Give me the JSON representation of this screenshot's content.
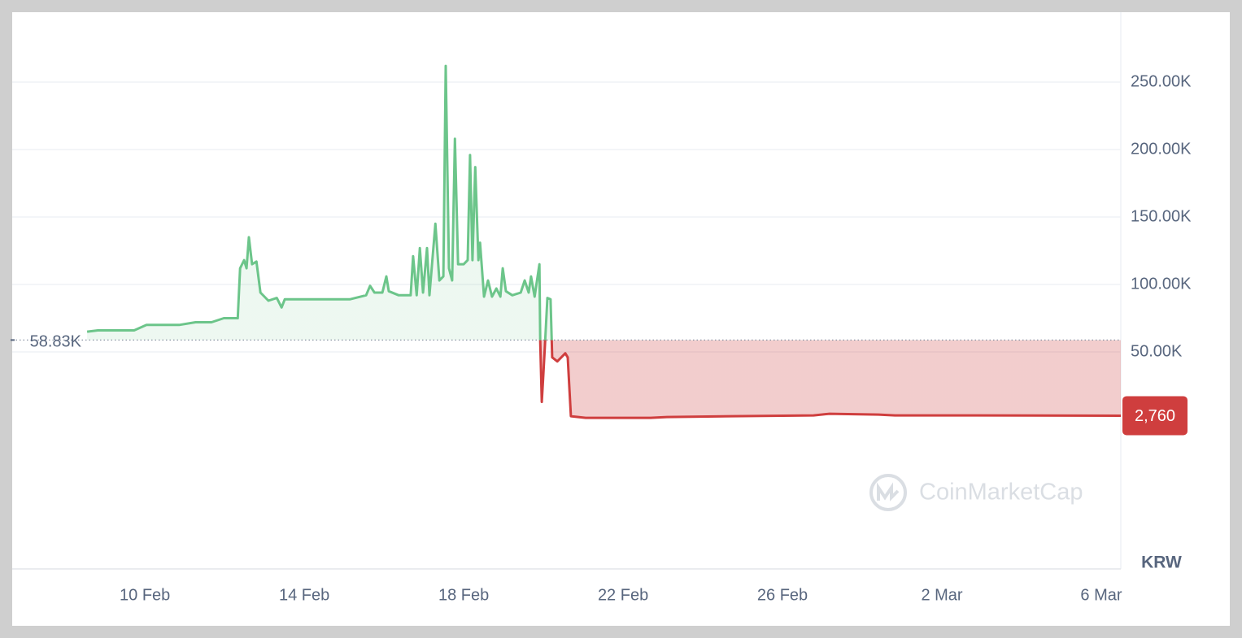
{
  "chart_data": {
    "type": "line",
    "x": [
      8.55,
      8.82,
      9.22,
      9.73,
      10.04,
      10.45,
      10.86,
      11.27,
      11.67,
      11.98,
      12.33,
      12.39,
      12.49,
      12.55,
      12.61,
      12.69,
      12.8,
      12.9,
      13.1,
      13.31,
      13.43,
      13.51,
      13.92,
      14.53,
      15.14,
      15.55,
      15.65,
      15.76,
      15.96,
      16.06,
      16.12,
      16.37,
      16.67,
      16.73,
      16.82,
      16.9,
      16.98,
      17.08,
      17.14,
      17.29,
      17.39,
      17.49,
      17.55,
      17.63,
      17.71,
      17.78,
      17.86,
      18.0,
      18.1,
      18.16,
      18.22,
      18.29,
      18.37,
      18.41,
      18.51,
      18.61,
      18.71,
      18.82,
      18.92,
      18.98,
      19.06,
      19.22,
      19.43,
      19.53,
      19.63,
      19.69,
      19.78,
      19.9,
      19.92,
      19.96,
      20.0,
      20.04,
      20.1,
      20.18,
      20.22,
      20.35,
      20.45,
      20.55,
      20.61,
      20.69,
      21.06,
      22.69,
      23.1,
      24.73,
      26.78,
      27.18,
      28.41,
      28.82,
      30.86,
      34.49
    ],
    "values": [
      65000,
      66000,
      66000,
      66000,
      70000,
      70000,
      70000,
      72000,
      72000,
      75000,
      75000,
      112000,
      118000,
      112000,
      135000,
      115000,
      117000,
      94000,
      88000,
      90000,
      83000,
      89000,
      89000,
      89000,
      89000,
      92000,
      99000,
      94000,
      94000,
      106000,
      95000,
      92000,
      92000,
      121000,
      92000,
      127000,
      94000,
      127000,
      92000,
      145000,
      103000,
      106000,
      262000,
      112000,
      103000,
      208000,
      115000,
      115000,
      118000,
      196000,
      118000,
      187000,
      118000,
      131000,
      91000,
      103000,
      91000,
      97000,
      91000,
      112000,
      95000,
      92000,
      94000,
      103000,
      94000,
      106000,
      91000,
      115000,
      58000,
      13000,
      34000,
      55000,
      90000,
      89000,
      46000,
      43000,
      46000,
      49000,
      46000,
      2400,
      1200,
      1200,
      1800,
      2400,
      3000,
      4200,
      3600,
      3000,
      3000,
      2760
    ],
    "xlim": [
      6.67,
      34.49
    ],
    "xticks": [
      {
        "value": 10,
        "label": "10 Feb"
      },
      {
        "value": 14,
        "label": "14 Feb"
      },
      {
        "value": 18,
        "label": "18 Feb"
      },
      {
        "value": 22,
        "label": "22 Feb"
      },
      {
        "value": 26,
        "label": "26 Feb"
      },
      {
        "value": 30,
        "label": "2 Mar"
      },
      {
        "value": 34,
        "label": "6 Mar"
      }
    ],
    "ylim": [
      -110800,
      300600
    ],
    "yticks": [
      {
        "value": 50000,
        "label": "50.00K"
      },
      {
        "value": 100000,
        "label": "100.00K"
      },
      {
        "value": 150000,
        "label": "150.00K"
      },
      {
        "value": 200000,
        "label": "200.00K"
      },
      {
        "value": 250000,
        "label": "250.00K"
      }
    ],
    "grid": true,
    "baseline": {
      "value": 58830,
      "label": "58.83K"
    },
    "last_price": {
      "value": 2760,
      "label": "2,760"
    },
    "currency": "KRW",
    "watermark": "CoinMarketCap",
    "up_color": "#6cc58a",
    "down_color": "#cf3e3e"
  }
}
